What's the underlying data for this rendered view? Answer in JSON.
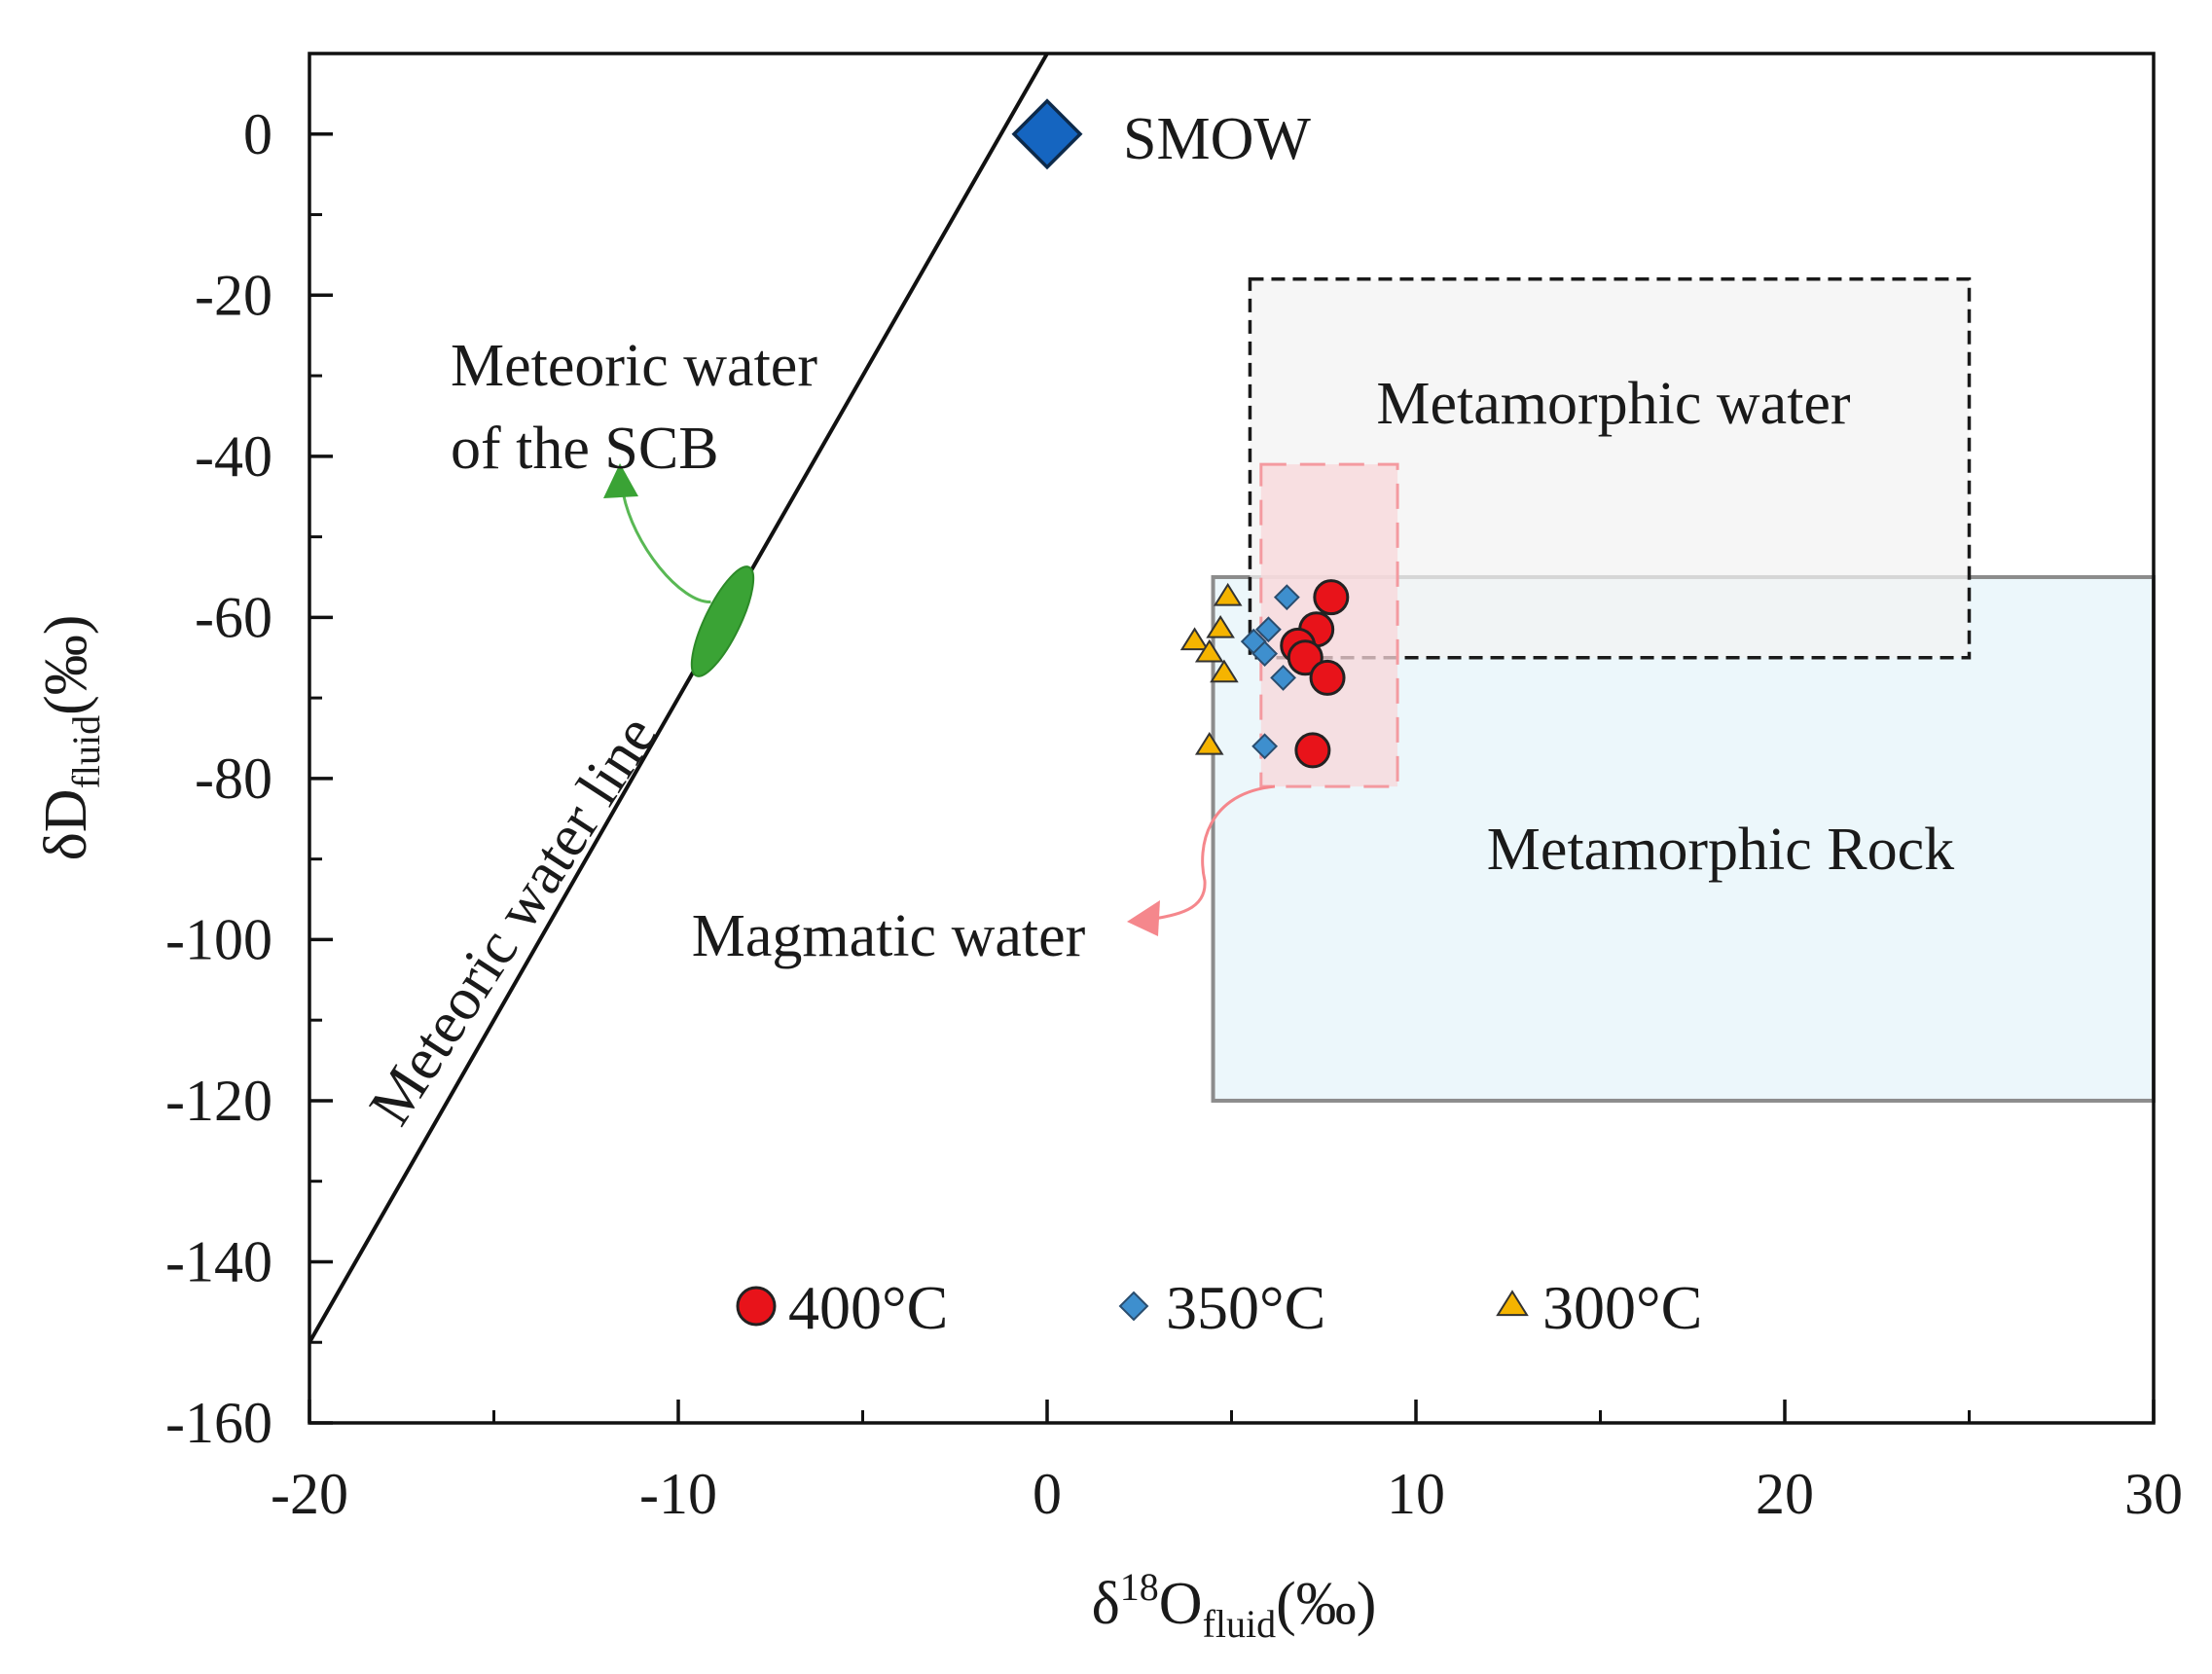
{
  "chart_data": {
    "type": "scatter",
    "title": "",
    "xlabel": {
      "main": "δ",
      "sup": "18",
      "mid": "O",
      "sub": "fluid",
      "tail": "(‰)"
    },
    "ylabel": {
      "main": "δD",
      "sub": "fluid",
      "tail": "(‰)"
    },
    "xlim": [
      -20,
      30
    ],
    "ylim": [
      -160,
      10
    ],
    "x_ticks": [
      -20,
      -10,
      0,
      10,
      20,
      30
    ],
    "y_ticks": [
      0,
      -20,
      -40,
      -60,
      -80,
      -100,
      -120,
      -140,
      -160
    ],
    "x_minor_ticks": [
      -15,
      -5,
      5,
      15,
      25
    ],
    "y_minor_ticks": [
      10,
      -10,
      -30,
      -50,
      -70,
      -90,
      -110,
      -130,
      -150
    ],
    "meteoric_water_line": {
      "label": "Meteoric water line",
      "x1": -20,
      "y1": -150,
      "x2": 0,
      "y2": 10
    },
    "smow": {
      "label": "SMOW",
      "x": 0,
      "y": 0,
      "color": "#1565c0"
    },
    "regions": [
      {
        "id": "metamorphic-rock",
        "label": "Metamorphic Rock",
        "x0": 4.5,
        "x1": 30,
        "y0": -120,
        "y1": -55,
        "fill": "#ecf7fb",
        "stroke": "#8c8c8c",
        "dash": ""
      },
      {
        "id": "metamorphic-water",
        "label": "Metamorphic water",
        "x0": 5.5,
        "x1": 25,
        "y0": -65,
        "y1": -18,
        "fill": "#f2f2f2",
        "stroke": "#1a1a1a",
        "dash": "14,8"
      },
      {
        "id": "magmatic-water",
        "label": "Magmatic water",
        "x0": 5.8,
        "x1": 9.5,
        "y0": -81,
        "y1": -41,
        "fill": "#f8d7da",
        "stroke": "#f49aa0",
        "dash": "26,14"
      }
    ],
    "meteoric_scb": {
      "label_line1": "Meteoric water",
      "label_line2": "of the SCB",
      "cx": -8.8,
      "cy": -60.5,
      "color": "#3aa335"
    },
    "series": [
      {
        "name": "400°C",
        "marker": "circle",
        "color": "#e8131a",
        "points": [
          [
            7.7,
            -57.5
          ],
          [
            7.3,
            -61.5
          ],
          [
            6.8,
            -63.5
          ],
          [
            7.0,
            -65.0
          ],
          [
            7.6,
            -67.5
          ],
          [
            7.2,
            -76.5
          ]
        ]
      },
      {
        "name": "350°C",
        "marker": "diamond",
        "color": "#3e8fce",
        "points": [
          [
            6.5,
            -57.5
          ],
          [
            6.0,
            -61.5
          ],
          [
            5.6,
            -63.0
          ],
          [
            5.9,
            -64.5
          ],
          [
            6.4,
            -67.5
          ],
          [
            5.9,
            -76.0
          ]
        ]
      },
      {
        "name": "300°C",
        "marker": "triangle",
        "color": "#f5b400",
        "points": [
          [
            4.9,
            -57.5
          ],
          [
            4.7,
            -61.5
          ],
          [
            4.0,
            -63.0
          ],
          [
            4.4,
            -64.5
          ],
          [
            4.8,
            -67.0
          ],
          [
            4.4,
            -76.0
          ]
        ]
      }
    ],
    "legend": {
      "placement": "bottom-center"
    }
  }
}
